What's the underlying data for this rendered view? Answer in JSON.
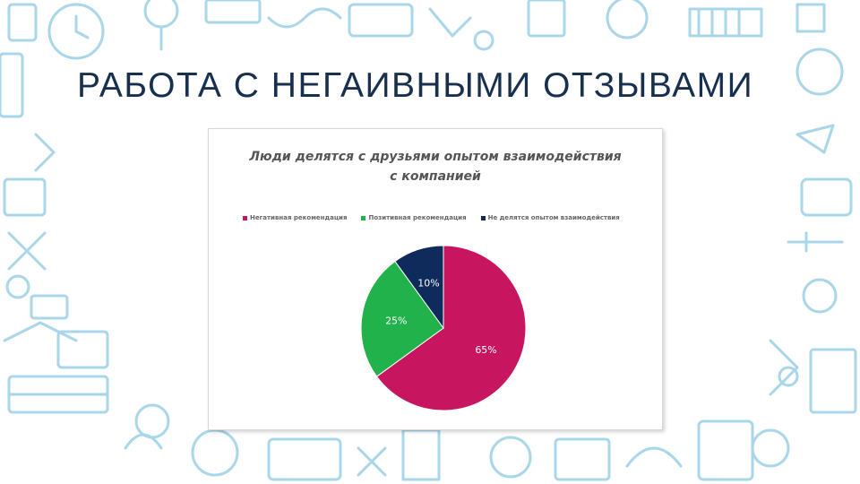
{
  "slide": {
    "title": "РАБОТА С НЕГАИВНЫМИ ОТЗЫВАМИ"
  },
  "colors": {
    "title": "#17304f",
    "doodles": "#a9d6e8",
    "negative": "#c8155f",
    "positive": "#21b24b",
    "none": "#0f2b5b"
  },
  "chart_data": {
    "type": "pie",
    "title_lines": [
      "Люди делятся с друзьями опытом взаимодействия",
      "с компанией"
    ],
    "legend_position": "top",
    "series": [
      {
        "name": "Негативная рекомендация",
        "value": 65,
        "label": "65%",
        "color": "#c8155f"
      },
      {
        "name": "Позитивная рекомендация",
        "value": 25,
        "label": "25%",
        "color": "#21b24b"
      },
      {
        "name": "Не делятся опытом взаимодействия",
        "value": 10,
        "label": "10%",
        "color": "#0f2b5b"
      }
    ]
  }
}
